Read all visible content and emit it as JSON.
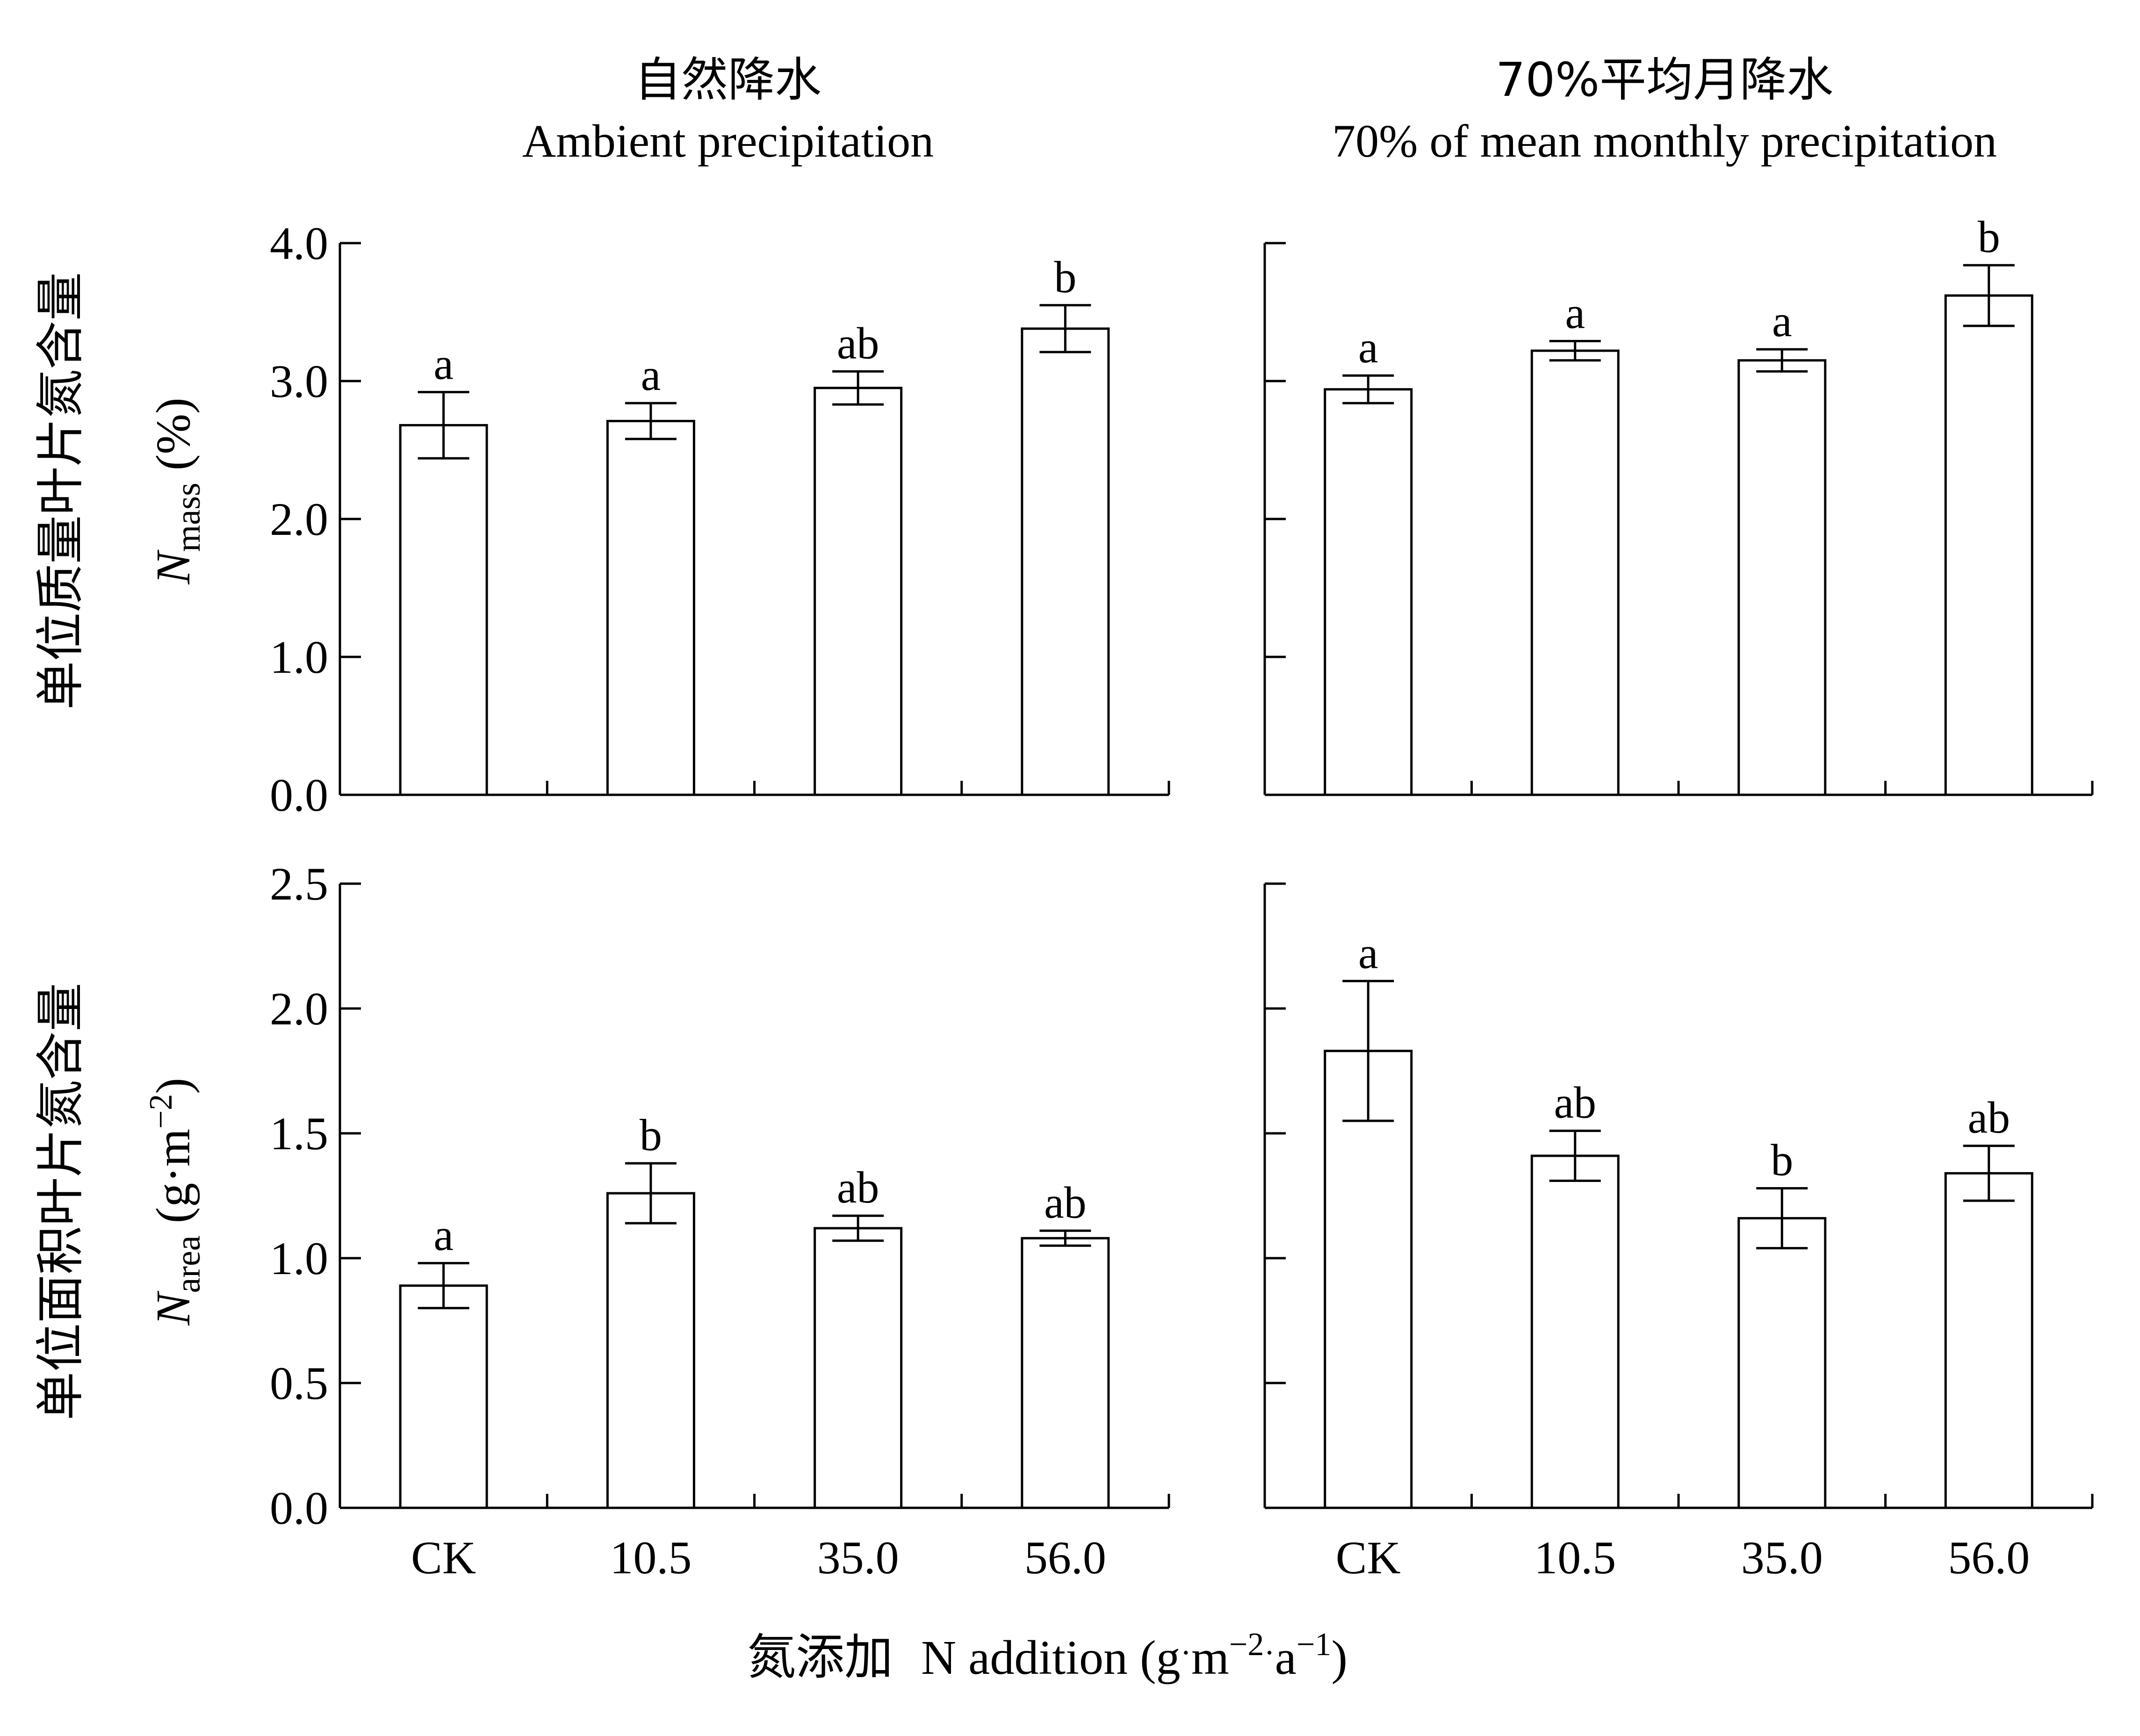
{
  "figure": {
    "col_titles": [
      {
        "cn": "自然降水",
        "en": "Ambient precipitation"
      },
      {
        "cn": "70%平均月降水",
        "en": "70% of mean monthly precipitation"
      }
    ],
    "row_labels": [
      {
        "cn": "单位质量叶片氮含量",
        "sym": "N",
        "sub": "mass",
        "unit": " (%)"
      },
      {
        "cn": "单位面积叶片氮含量",
        "sym": "N",
        "sub": "area",
        "unit": " (g·m",
        "unit_sup": "−2",
        "unit_end": ")"
      }
    ],
    "xlabel": {
      "cn": "氮添加",
      "en": "N addition (g",
      "dot1": "·",
      "m": "m",
      "sup1": "−2",
      "dot2": "·",
      "a": "a",
      "sup2": "−1",
      "end": ")"
    }
  },
  "chart_data": [
    {
      "type": "bar",
      "panel": "top-left",
      "categories": [
        "CK",
        "10.5",
        "35.0",
        "56.0"
      ],
      "values": [
        2.68,
        2.71,
        2.95,
        3.38
      ],
      "errors": [
        0.24,
        0.13,
        0.12,
        0.17
      ],
      "letters": [
        "a",
        "a",
        "ab",
        "b"
      ],
      "ylim": [
        0,
        4
      ],
      "yticks": [
        "0.0",
        "1.0",
        "2.0",
        "3.0",
        "4.0"
      ]
    },
    {
      "type": "bar",
      "panel": "top-right",
      "categories": [
        "CK",
        "10.5",
        "35.0",
        "56.0"
      ],
      "values": [
        2.94,
        3.22,
        3.15,
        3.62
      ],
      "errors": [
        0.1,
        0.07,
        0.08,
        0.22
      ],
      "letters": [
        "a",
        "a",
        "a",
        "b"
      ],
      "ylim": [
        0,
        4
      ]
    },
    {
      "type": "bar",
      "panel": "bottom-left",
      "categories": [
        "CK",
        "10.5",
        "35.0",
        "56.0"
      ],
      "values": [
        0.89,
        1.26,
        1.12,
        1.08
      ],
      "errors": [
        0.09,
        0.12,
        0.05,
        0.03
      ],
      "letters": [
        "a",
        "b",
        "ab",
        "ab"
      ],
      "ylim": [
        0,
        2.5
      ],
      "yticks": [
        "0.0",
        "0.5",
        "1.0",
        "1.5",
        "2.0",
        "2.5"
      ],
      "xticks": [
        "CK",
        "10.5",
        "35.0",
        "56.0"
      ]
    },
    {
      "type": "bar",
      "panel": "bottom-right",
      "categories": [
        "CK",
        "10.5",
        "35.0",
        "56.0"
      ],
      "values": [
        1.83,
        1.41,
        1.16,
        1.34
      ],
      "errors": [
        0.28,
        0.1,
        0.12,
        0.11
      ],
      "letters": [
        "a",
        "ab",
        "b",
        "ab"
      ],
      "ylim": [
        0,
        2.5
      ],
      "xticks": [
        "CK",
        "10.5",
        "35.0",
        "56.0"
      ]
    }
  ]
}
